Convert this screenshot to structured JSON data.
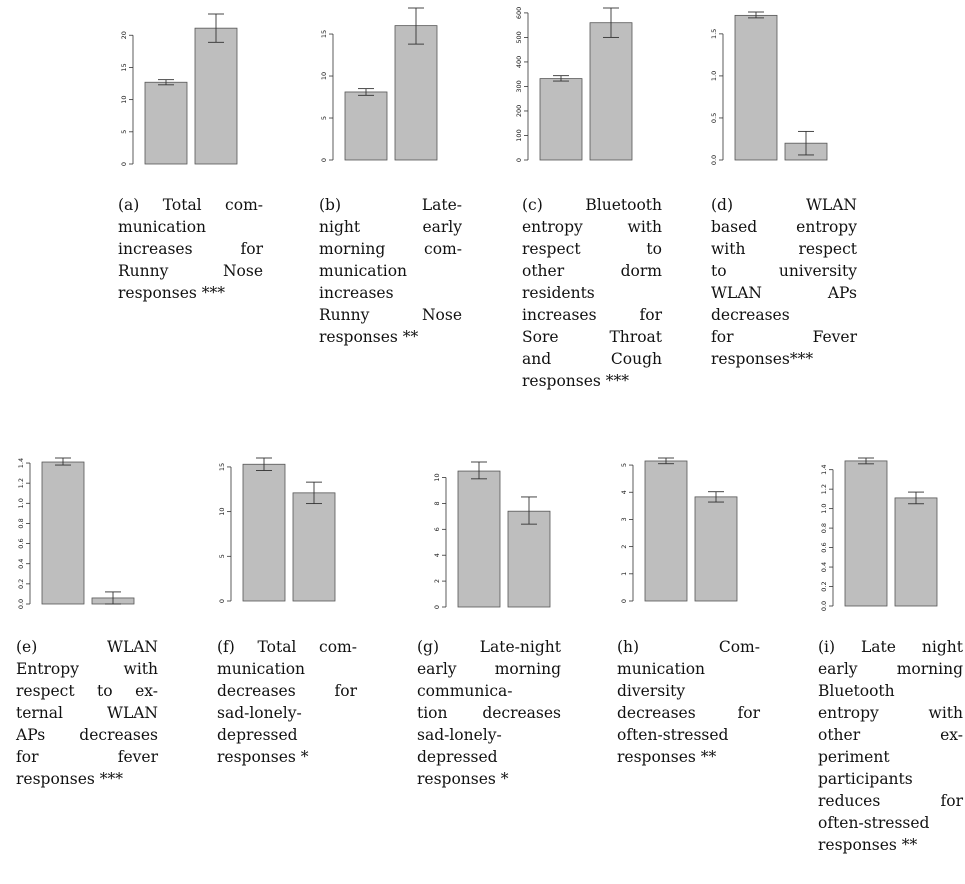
{
  "figure": {
    "panels": [
      {
        "id": "a",
        "caption_lines": [
          "(a) Total com-",
          "munication",
          "increases   for",
          "Runny   Nose",
          "responses ***"
        ],
        "chart_data": {
          "type": "bar",
          "categories": [
            "",
            ""
          ],
          "values": [
            12.7,
            21.1
          ],
          "errors": [
            [
              12.3,
              13.1
            ],
            [
              18.9,
              23.3
            ]
          ],
          "ylim": [
            0,
            23.3
          ],
          "yticks": [
            0,
            5,
            10,
            15,
            20
          ],
          "ytick_labels": [
            "0",
            "5",
            "10",
            "15",
            "20"
          ],
          "title": "",
          "xlabel": "",
          "ylabel": "",
          "bar_color": "#bebebe"
        }
      },
      {
        "id": "b",
        "caption_lines": [
          "(b)          Late-",
          "night      early",
          "morning  com-",
          "munication",
          "increases",
          "Runny    Nose",
          "responses **"
        ],
        "chart_data": {
          "type": "bar",
          "categories": [
            "",
            ""
          ],
          "values": [
            8.1,
            16.0
          ],
          "errors": [
            [
              7.7,
              8.5
            ],
            [
              13.8,
              18.1
            ]
          ],
          "ylim": [
            0,
            18.1
          ],
          "yticks": [
            0,
            5,
            10,
            15
          ],
          "ytick_labels": [
            "0",
            "5",
            "10",
            "15"
          ],
          "title": "",
          "xlabel": "",
          "ylabel": "",
          "bar_color": "#bebebe"
        }
      },
      {
        "id": "c",
        "caption_lines": [
          "(c)  Bluetooth",
          "entropy    with",
          "respect         to",
          "other      dorm",
          "residents",
          "increases    for",
          "Sore     Throat",
          "and        Cough",
          "responses ***"
        ],
        "chart_data": {
          "type": "bar",
          "categories": [
            "",
            ""
          ],
          "values": [
            332,
            560
          ],
          "errors": [
            [
              322,
              344
            ],
            [
              500,
              620
            ]
          ],
          "ylim": [
            0,
            620
          ],
          "yticks": [
            0,
            100,
            200,
            300,
            400,
            500,
            600
          ],
          "ytick_labels": [
            "0",
            "100",
            "200",
            "300",
            "400",
            "500",
            "600"
          ],
          "title": "",
          "xlabel": "",
          "ylabel": "",
          "bar_color": "#bebebe"
        }
      },
      {
        "id": "d",
        "caption_lines": [
          "(d)        WLAN",
          "based  entropy",
          "with      respect",
          "to  university",
          "WLAN      APs",
          "decreases",
          "for          Fever",
          "responses***"
        ],
        "chart_data": {
          "type": "bar",
          "categories": [
            "",
            ""
          ],
          "values": [
            1.72,
            0.2
          ],
          "errors": [
            [
              1.69,
              1.76
            ],
            [
              0.06,
              0.34
            ]
          ],
          "ylim": [
            0,
            1.76
          ],
          "yticks": [
            0,
            0.5,
            1.0,
            1.5
          ],
          "ytick_labels": [
            "0.0",
            "0.5",
            "1.0",
            "1.5"
          ],
          "title": "",
          "xlabel": "",
          "ylabel": "",
          "bar_color": "#bebebe"
        }
      },
      {
        "id": "e",
        "caption_lines": [
          "(e)        WLAN",
          "Entropy   with",
          "respect to ex-",
          "ternal   WLAN",
          "APs decreases",
          "for           fever",
          "responses ***"
        ],
        "chart_data": {
          "type": "bar",
          "categories": [
            "",
            ""
          ],
          "values": [
            1.41,
            0.06
          ],
          "errors": [
            [
              1.38,
              1.45
            ],
            [
              0.0,
              0.12
            ]
          ],
          "ylim": [
            0,
            1.45
          ],
          "yticks": [
            0,
            0.2,
            0.4,
            0.6,
            0.8,
            1.0,
            1.2,
            1.4
          ],
          "ytick_labels": [
            "0.0",
            "0.2",
            "0.4",
            "0.6",
            "0.8",
            "1.0",
            "1.2",
            "1.4"
          ],
          "title": "",
          "xlabel": "",
          "ylabel": "",
          "bar_color": "#bebebe"
        }
      },
      {
        "id": "f",
        "caption_lines": [
          "(f) Total com-",
          "munication",
          "decreases     for",
          "sad-lonely-",
          "depressed",
          "responses *"
        ],
        "chart_data": {
          "type": "bar",
          "categories": [
            "",
            ""
          ],
          "values": [
            15.3,
            12.1
          ],
          "errors": [
            [
              14.6,
              16.0
            ],
            [
              10.9,
              13.3
            ]
          ],
          "ylim": [
            0,
            16.0
          ],
          "yticks": [
            0,
            5,
            10,
            15
          ],
          "ytick_labels": [
            "0",
            "5",
            "10",
            "15"
          ],
          "title": "",
          "xlabel": "",
          "ylabel": "",
          "bar_color": "#bebebe"
        }
      },
      {
        "id": "g",
        "caption_lines": [
          "(g) Late-night",
          "early morning",
          "communica-",
          "tion decreases",
          "sad-lonely-",
          "depressed",
          "responses *"
        ],
        "chart_data": {
          "type": "bar",
          "categories": [
            "",
            ""
          ],
          "values": [
            10.5,
            7.4
          ],
          "errors": [
            [
              9.9,
              11.2
            ],
            [
              6.4,
              8.5
            ]
          ],
          "ylim": [
            0,
            11.2
          ],
          "yticks": [
            0,
            2,
            4,
            6,
            8,
            10
          ],
          "ytick_labels": [
            "0",
            "2",
            "4",
            "6",
            "8",
            "10"
          ],
          "title": "",
          "xlabel": "",
          "ylabel": "",
          "bar_color": "#bebebe"
        }
      },
      {
        "id": "h",
        "caption_lines": [
          "(h)          Com-",
          "munication",
          "diversity",
          "decreases    for",
          "often-stressed",
          "responses **"
        ],
        "chart_data": {
          "type": "bar",
          "categories": [
            "",
            ""
          ],
          "values": [
            5.15,
            3.83
          ],
          "errors": [
            [
              5.05,
              5.26
            ],
            [
              3.64,
              4.02
            ]
          ],
          "ylim": [
            0,
            5.26
          ],
          "yticks": [
            0,
            1,
            2,
            3,
            4,
            5
          ],
          "ytick_labels": [
            "0",
            "1",
            "2",
            "3",
            "4",
            "5"
          ],
          "title": "",
          "xlabel": "",
          "ylabel": "",
          "bar_color": "#bebebe"
        }
      },
      {
        "id": "i",
        "caption_lines": [
          "(i)  Late  night",
          "early morning",
          "Bluetooth",
          "entropy     with",
          "other            ex-",
          "periment",
          "participants",
          "reduces        for",
          "often-stressed",
          "responses **"
        ],
        "chart_data": {
          "type": "bar",
          "categories": [
            "",
            ""
          ],
          "values": [
            1.49,
            1.11
          ],
          "errors": [
            [
              1.46,
              1.52
            ],
            [
              1.05,
              1.17
            ]
          ],
          "ylim": [
            0,
            1.52
          ],
          "yticks": [
            0,
            0.2,
            0.4,
            0.6,
            0.8,
            1.0,
            1.2,
            1.4
          ],
          "ytick_labels": [
            "0.0",
            "0.2",
            "0.4",
            "0.6",
            "0.8",
            "1.0",
            "1.2",
            "1.4"
          ],
          "title": "",
          "xlabel": "",
          "ylabel": "",
          "bar_color": "#bebebe"
        }
      }
    ]
  }
}
